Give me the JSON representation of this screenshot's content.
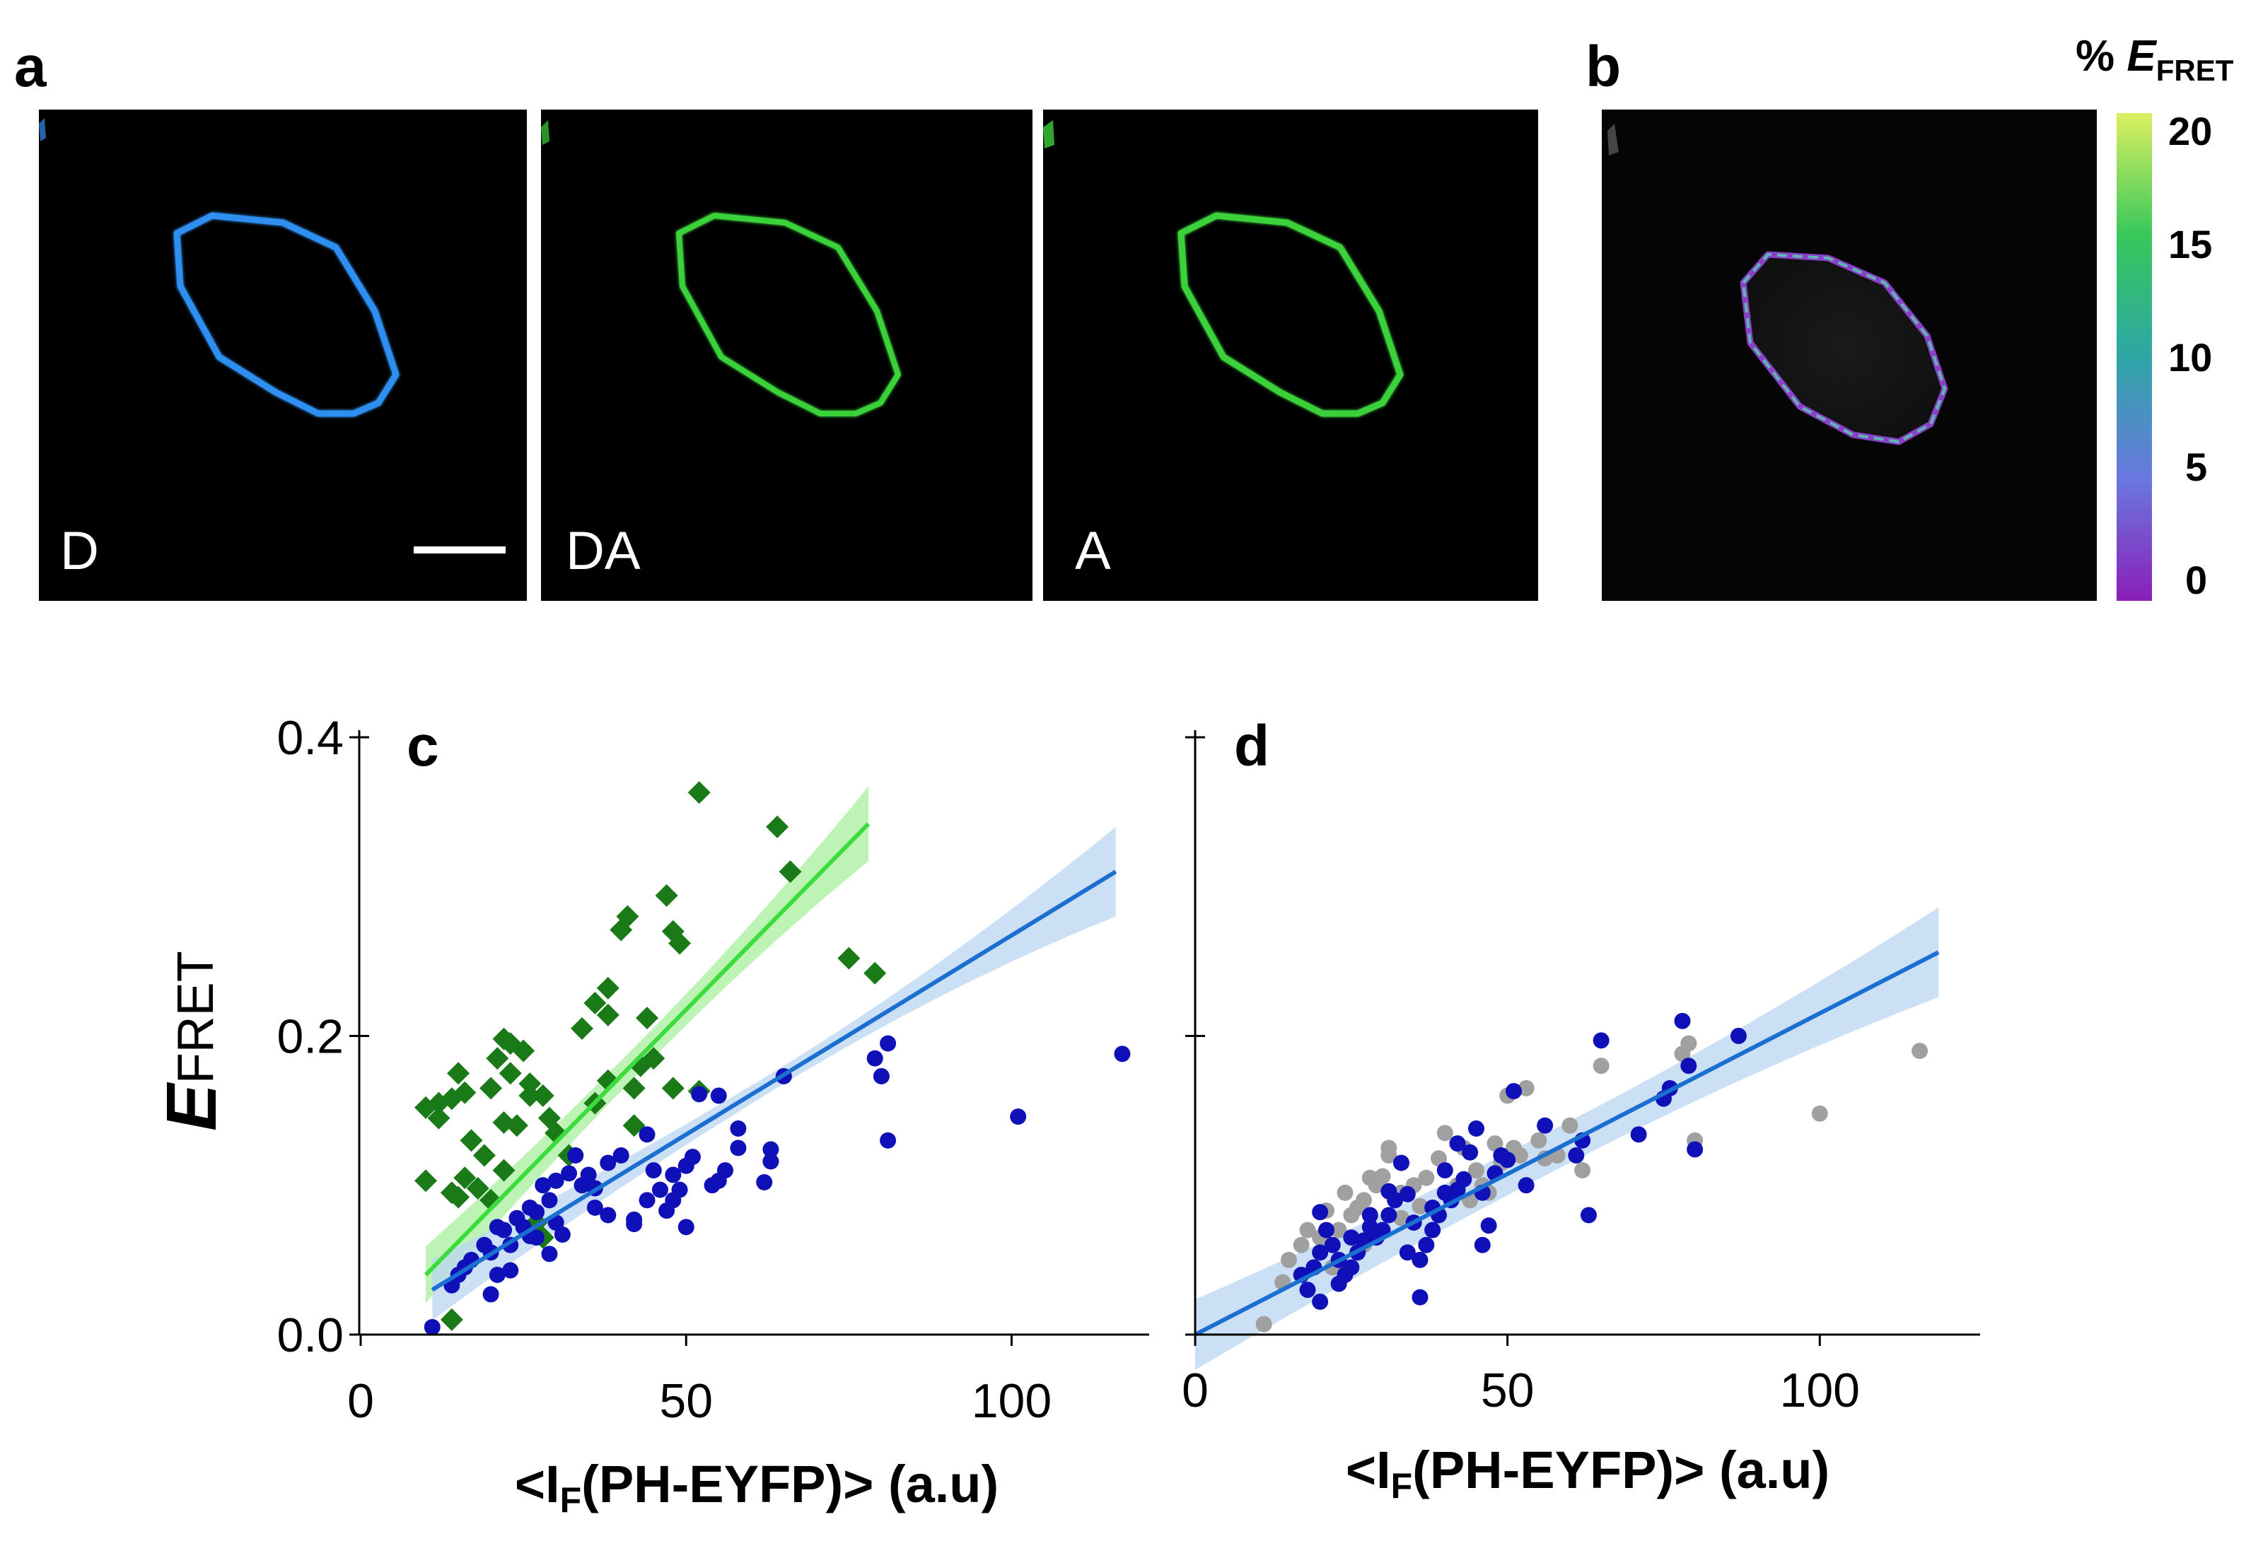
{
  "panel_a": {
    "label": "a",
    "channels": [
      {
        "label": "D",
        "color": "#2f8ff0"
      },
      {
        "label": "DA",
        "color": "#3bd13a"
      },
      {
        "label": "A",
        "color": "#3bd13a"
      }
    ]
  },
  "panel_b": {
    "label": "b",
    "colorbar": {
      "title_prefix": "% ",
      "title_main": "E",
      "title_sub": "FRET",
      "ticks": [
        "20",
        "15",
        "10",
        "5",
        "0"
      ],
      "stops": [
        "#dcef60",
        "#37c85a",
        "#2ea6a6",
        "#6a78e0",
        "#8a1fb8"
      ]
    }
  },
  "colors": {
    "green_marker": "#1a7a17",
    "green_line": "#3ddc3d",
    "green_band": "#a8ef9e",
    "blue_marker": "#1010b8",
    "blue_line": "#1b6fd1",
    "blue_band": "#b9d5f2",
    "gray_marker": "#a0a0a0"
  },
  "y_label": {
    "main": "E",
    "sub": "FRET"
  },
  "chart_data": [
    {
      "type": "scatter",
      "panel_label": "c",
      "xlabel_pre": "<I",
      "xlabel_sub": "F",
      "xlabel_post": "(PH-EYFP)> (a.u)",
      "xlim": [
        0,
        120
      ],
      "ylim": [
        0,
        0.4
      ],
      "xticks": [
        0,
        50,
        100
      ],
      "yticks": [
        0.0,
        0.2,
        0.4
      ],
      "ytick_labels": [
        "0.0",
        "0.2",
        "0.4"
      ],
      "series": [
        {
          "name": "green diamonds",
          "marker": "diamond",
          "color": "#1a7a17",
          "points": [
            [
              52,
              0.363
            ],
            [
              64,
              0.34
            ],
            [
              66,
              0.31
            ],
            [
              47,
              0.294
            ],
            [
              41,
              0.28
            ],
            [
              40,
              0.271
            ],
            [
              48,
              0.27
            ],
            [
              49,
              0.262
            ],
            [
              75,
              0.252
            ],
            [
              79,
              0.242
            ],
            [
              38,
              0.232
            ],
            [
              36,
              0.222
            ],
            [
              38,
              0.214
            ],
            [
              44,
              0.212
            ],
            [
              34,
              0.205
            ],
            [
              22,
              0.198
            ],
            [
              23,
              0.195
            ],
            [
              10,
              0.152
            ],
            [
              12,
              0.155
            ],
            [
              14,
              0.158
            ],
            [
              16,
              0.162
            ],
            [
              21,
              0.185
            ],
            [
              26,
              0.168
            ],
            [
              28,
              0.16
            ],
            [
              29,
              0.145
            ],
            [
              15,
              0.175
            ],
            [
              20,
              0.165
            ],
            [
              23,
              0.175
            ],
            [
              25,
              0.19
            ],
            [
              30,
              0.135
            ],
            [
              32,
              0.12
            ],
            [
              36,
              0.155
            ],
            [
              38,
              0.17
            ],
            [
              42,
              0.165
            ],
            [
              24,
              0.14
            ],
            [
              19,
              0.12
            ],
            [
              22,
              0.11
            ],
            [
              17,
              0.13
            ],
            [
              18,
              0.098
            ],
            [
              15,
              0.092
            ],
            [
              10,
              0.103
            ],
            [
              14,
              0.095
            ],
            [
              16,
              0.105
            ],
            [
              20,
              0.09
            ],
            [
              27,
              0.075
            ],
            [
              28,
              0.065
            ],
            [
              42,
              0.14
            ],
            [
              43,
              0.18
            ],
            [
              48,
              0.165
            ],
            [
              52,
              0.163
            ],
            [
              14,
              0.01
            ],
            [
              22,
              0.142
            ],
            [
              26,
              0.16
            ],
            [
              45,
              0.185
            ],
            [
              12,
              0.145
            ]
          ]
        },
        {
          "name": "blue circles",
          "marker": "circle",
          "color": "#1010b8",
          "points": [
            [
              117,
              0.188
            ],
            [
              81,
              0.195
            ],
            [
              79,
              0.185
            ],
            [
              80,
              0.173
            ],
            [
              65,
              0.173
            ],
            [
              101,
              0.146
            ],
            [
              81,
              0.13
            ],
            [
              44,
              0.134
            ],
            [
              52,
              0.161
            ],
            [
              55,
              0.16
            ],
            [
              58,
              0.138
            ],
            [
              63,
              0.124
            ],
            [
              63,
              0.116
            ],
            [
              56,
              0.11
            ],
            [
              54,
              0.1
            ],
            [
              62,
              0.102
            ],
            [
              50,
              0.113
            ],
            [
              48,
              0.107
            ],
            [
              46,
              0.097
            ],
            [
              44,
              0.09
            ],
            [
              47,
              0.083
            ],
            [
              42,
              0.077
            ],
            [
              38,
              0.08
            ],
            [
              36,
              0.085
            ],
            [
              33,
              0.12
            ],
            [
              35,
              0.107
            ],
            [
              32,
              0.108
            ],
            [
              30,
              0.103
            ],
            [
              28,
              0.1
            ],
            [
              29,
              0.09
            ],
            [
              26,
              0.085
            ],
            [
              27,
              0.082
            ],
            [
              24,
              0.078
            ],
            [
              25,
              0.072
            ],
            [
              21,
              0.072
            ],
            [
              22,
              0.07
            ],
            [
              23,
              0.06
            ],
            [
              31,
              0.067
            ],
            [
              29,
              0.054
            ],
            [
              19,
              0.06
            ],
            [
              20,
              0.055
            ],
            [
              17,
              0.05
            ],
            [
              16,
              0.045
            ],
            [
              15,
              0.04
            ],
            [
              14,
              0.033
            ],
            [
              21,
              0.04
            ],
            [
              20,
              0.027
            ],
            [
              11,
              0.005
            ],
            [
              38,
              0.115
            ],
            [
              40,
              0.12
            ],
            [
              45,
              0.11
            ],
            [
              48,
              0.09
            ],
            [
              50,
              0.072
            ],
            [
              49,
              0.097
            ],
            [
              42,
              0.074
            ],
            [
              51,
              0.119
            ],
            [
              58,
              0.125
            ],
            [
              36,
              0.098
            ],
            [
              34,
              0.1
            ],
            [
              30,
              0.075
            ],
            [
              27,
              0.065
            ],
            [
              23,
              0.043
            ],
            [
              26,
              0.066
            ],
            [
              55,
              0.103
            ]
          ]
        }
      ],
      "fits": [
        {
          "name": "green fit",
          "color": "#3ddc3d",
          "band": "#a8ef9e",
          "x": [
            10,
            78
          ],
          "y": [
            0.04,
            0.342
          ],
          "ci": [
            0.01,
            0.025
          ]
        },
        {
          "name": "blue fit",
          "color": "#1b6fd1",
          "band": "#b9d5f2",
          "x": [
            11,
            116
          ],
          "y": [
            0.03,
            0.31
          ],
          "ci": [
            0.006,
            0.03
          ]
        }
      ]
    },
    {
      "type": "scatter",
      "panel_label": "d",
      "xlabel_pre": "<I",
      "xlabel_sub": "F",
      "xlabel_post": "(PH-EYFP)> (a.u)",
      "xlim": [
        0,
        120
      ],
      "ylim": [
        0,
        0.4
      ],
      "xticks": [
        0,
        50,
        100
      ],
      "yticks": [
        0.0,
        0.2,
        0.4
      ],
      "ytick_labels": [
        "",
        "",
        ""
      ],
      "series": [
        {
          "name": "gray circles",
          "marker": "circle",
          "color": "#a0a0a0",
          "points": [
            [
              116,
              0.19
            ],
            [
              100,
              0.148
            ],
            [
              80,
              0.13
            ],
            [
              79,
              0.195
            ],
            [
              78,
              0.188
            ],
            [
              65,
              0.18
            ],
            [
              60,
              0.14
            ],
            [
              58,
              0.12
            ],
            [
              55,
              0.13
            ],
            [
              53,
              0.165
            ],
            [
              51,
              0.125
            ],
            [
              50,
              0.16
            ],
            [
              49,
              0.115
            ],
            [
              47,
              0.095
            ],
            [
              45,
              0.11
            ],
            [
              44,
              0.09
            ],
            [
              42,
              0.1
            ],
            [
              40,
              0.135
            ],
            [
              39,
              0.118
            ],
            [
              37,
              0.105
            ],
            [
              35,
              0.1
            ],
            [
              33,
              0.095
            ],
            [
              31,
              0.12
            ],
            [
              30,
              0.106
            ],
            [
              29,
              0.1
            ],
            [
              27,
              0.09
            ],
            [
              26,
              0.085
            ],
            [
              25,
              0.08
            ],
            [
              23,
              0.07
            ],
            [
              21,
              0.083
            ],
            [
              20,
              0.065
            ],
            [
              18,
              0.07
            ],
            [
              17,
              0.06
            ],
            [
              15,
              0.05
            ],
            [
              14,
              0.035
            ],
            [
              11,
              0.007
            ],
            [
              31,
              0.125
            ],
            [
              28,
              0.105
            ],
            [
              33,
              0.078
            ],
            [
              36,
              0.086
            ],
            [
              38,
              0.07
            ],
            [
              43,
              0.125
            ],
            [
              46,
              0.1
            ],
            [
              48,
              0.128
            ],
            [
              52,
              0.12
            ],
            [
              56,
              0.118
            ],
            [
              62,
              0.11
            ],
            [
              24,
              0.095
            ],
            [
              27,
              0.06
            ],
            [
              22,
              0.045
            ]
          ]
        },
        {
          "name": "blue circles",
          "marker": "circle",
          "color": "#1010b8",
          "points": [
            [
              87,
              0.2
            ],
            [
              78,
              0.21
            ],
            [
              79,
              0.18
            ],
            [
              80,
              0.124
            ],
            [
              76,
              0.165
            ],
            [
              75,
              0.158
            ],
            [
              71,
              0.134
            ],
            [
              65,
              0.197
            ],
            [
              63,
              0.08
            ],
            [
              62,
              0.13
            ],
            [
              61,
              0.12
            ],
            [
              56,
              0.14
            ],
            [
              53,
              0.1
            ],
            [
              51,
              0.163
            ],
            [
              50,
              0.117
            ],
            [
              49,
              0.12
            ],
            [
              48,
              0.108
            ],
            [
              47,
              0.073
            ],
            [
              46,
              0.095
            ],
            [
              44,
              0.122
            ],
            [
              43,
              0.104
            ],
            [
              42,
              0.097
            ],
            [
              41,
              0.09
            ],
            [
              40,
              0.095
            ],
            [
              39,
              0.08
            ],
            [
              38,
              0.07
            ],
            [
              37,
              0.06
            ],
            [
              36,
              0.05
            ],
            [
              35,
              0.075
            ],
            [
              34,
              0.094
            ],
            [
              33,
              0.115
            ],
            [
              32,
              0.09
            ],
            [
              31,
              0.08
            ],
            [
              30,
              0.07
            ],
            [
              29,
              0.065
            ],
            [
              28,
              0.08
            ],
            [
              27,
              0.063
            ],
            [
              26,
              0.055
            ],
            [
              25,
              0.045
            ],
            [
              24,
              0.04
            ],
            [
              23,
              0.05
            ],
            [
              22,
              0.06
            ],
            [
              21,
              0.07
            ],
            [
              20,
              0.055
            ],
            [
              19,
              0.045
            ],
            [
              18,
              0.03
            ],
            [
              17,
              0.04
            ],
            [
              20,
              0.022
            ],
            [
              36,
              0.025
            ],
            [
              34,
              0.055
            ],
            [
              40,
              0.11
            ],
            [
              45,
              0.138
            ],
            [
              42,
              0.128
            ],
            [
              31,
              0.096
            ],
            [
              28,
              0.072
            ],
            [
              23,
              0.034
            ],
            [
              25,
              0.065
            ],
            [
              20,
              0.082
            ],
            [
              46,
              0.06
            ],
            [
              38,
              0.085
            ]
          ]
        }
      ],
      "fits": [
        {
          "name": "blue fit",
          "color": "#1b6fd1",
          "band": "#b9d5f2",
          "x": [
            0,
            119
          ],
          "y": [
            0.0,
            0.256
          ],
          "ci": [
            0.014,
            0.03
          ]
        }
      ]
    }
  ]
}
